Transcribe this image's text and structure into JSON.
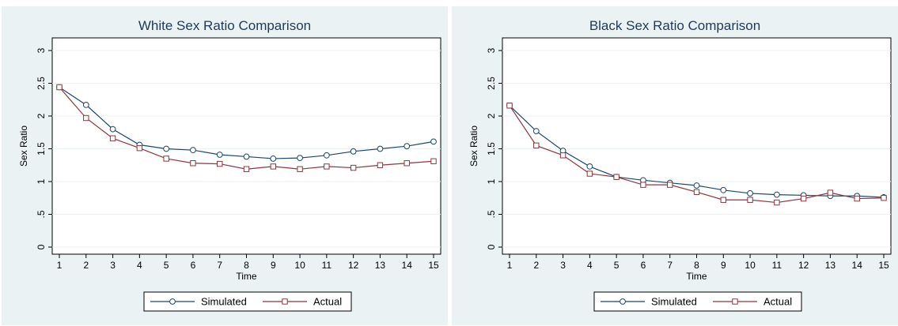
{
  "colors": {
    "simulated": "#1a476f",
    "actual": "#90353b",
    "panel_bg": "#eaf2f3",
    "grid": "#eaf2f3"
  },
  "chart_data": [
    {
      "type": "line",
      "title": "White Sex Ratio Comparison",
      "xlabel": "Time",
      "ylabel": "Sex Ratio",
      "x": [
        1,
        2,
        3,
        4,
        5,
        6,
        7,
        8,
        9,
        10,
        11,
        12,
        13,
        14,
        15
      ],
      "xticks": [
        "1",
        "2",
        "3",
        "4",
        "5",
        "6",
        "7",
        "8",
        "9",
        "10",
        "11",
        "12",
        "13",
        "14",
        "15"
      ],
      "yticks": [
        0,
        0.5,
        1,
        1.5,
        2,
        2.5,
        3
      ],
      "yticklabels": [
        "0",
        ".5",
        "1",
        "1.5",
        "2",
        "2.5",
        "3"
      ],
      "ylim": [
        0,
        3
      ],
      "grid": true,
      "legend_position": "bottom",
      "series": [
        {
          "name": "Simulated",
          "marker": "circle",
          "values": [
            2.44,
            2.17,
            1.8,
            1.56,
            1.5,
            1.48,
            1.41,
            1.38,
            1.35,
            1.36,
            1.4,
            1.46,
            1.5,
            1.54,
            1.61
          ]
        },
        {
          "name": "Actual",
          "marker": "square",
          "values": [
            2.44,
            1.97,
            1.66,
            1.51,
            1.35,
            1.28,
            1.27,
            1.19,
            1.23,
            1.19,
            1.23,
            1.21,
            1.25,
            1.28,
            1.31
          ]
        }
      ]
    },
    {
      "type": "line",
      "title": "Black Sex Ratio Comparison",
      "xlabel": "Time",
      "ylabel": "Sex Ratio",
      "x": [
        1,
        2,
        3,
        4,
        5,
        6,
        7,
        8,
        9,
        10,
        11,
        12,
        13,
        14,
        15
      ],
      "xticks": [
        "1",
        "2",
        "3",
        "4",
        "5",
        "6",
        "7",
        "8",
        "9",
        "10",
        "11",
        "12",
        "13",
        "14",
        "15"
      ],
      "yticks": [
        0,
        0.5,
        1,
        1.5,
        2,
        2.5,
        3
      ],
      "yticklabels": [
        "0",
        ".5",
        "1",
        "1.5",
        "2",
        "2.5",
        "3"
      ],
      "ylim": [
        0,
        3
      ],
      "grid": true,
      "legend_position": "bottom",
      "series": [
        {
          "name": "Simulated",
          "marker": "circle",
          "values": [
            2.16,
            1.77,
            1.47,
            1.23,
            1.07,
            1.02,
            0.98,
            0.94,
            0.87,
            0.82,
            0.8,
            0.79,
            0.78,
            0.78,
            0.76
          ]
        },
        {
          "name": "Actual",
          "marker": "square",
          "values": [
            2.16,
            1.55,
            1.4,
            1.12,
            1.07,
            0.95,
            0.95,
            0.84,
            0.72,
            0.72,
            0.68,
            0.74,
            0.83,
            0.74,
            0.75
          ]
        }
      ]
    }
  ]
}
